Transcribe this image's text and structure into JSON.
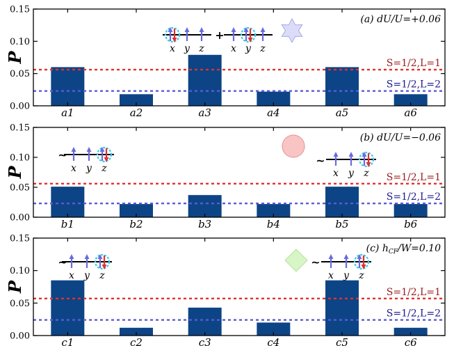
{
  "colors": {
    "bar": "#0d4486",
    "ref_s1": "#e0312f",
    "ref_s2": "#5a5ad6",
    "ref_s1_text": "#9b1c1c",
    "ref_s2_text": "#1b1b8c",
    "spin_up": "#6a6ae0",
    "spin_down": "#e0312f",
    "halo": "#39c9e6"
  },
  "chart_data": [
    {
      "type": "bar",
      "ylabel": "P",
      "ylim": [
        0,
        0.15
      ],
      "yticks": [
        "0.00",
        "0.05",
        "0.10",
        "0.15"
      ],
      "categories": [
        "a1",
        "a2",
        "a3",
        "a4",
        "a5",
        "a6"
      ],
      "values": [
        0.06,
        0.018,
        0.079,
        0.022,
        0.06,
        0.018
      ],
      "annotation": "(a) dU/U=+0.06",
      "reference_lines": [
        {
          "label": "S=1/2,L=1",
          "value": 0.056,
          "color": "#e0312f"
        },
        {
          "label": "S=1/2,L=2",
          "value": 0.023,
          "color": "#5a5ad6"
        }
      ],
      "marker": "star",
      "orbital_labels": [
        "x",
        "y",
        "z",
        "x",
        "y",
        "z"
      ],
      "operators": [
        "+"
      ]
    },
    {
      "type": "bar",
      "ylabel": "P",
      "ylim": [
        0,
        0.15
      ],
      "yticks": [
        "0.00",
        "0.05",
        "0.10",
        "0.15"
      ],
      "categories": [
        "b1",
        "b2",
        "b3",
        "b4",
        "b5",
        "b6"
      ],
      "values": [
        0.051,
        0.022,
        0.037,
        0.022,
        0.051,
        0.022
      ],
      "annotation": "(b) dU/U=−0.06",
      "reference_lines": [
        {
          "label": "S=1/2,L=1",
          "value": 0.056,
          "color": "#e0312f"
        },
        {
          "label": "S=1/2,L=2",
          "value": 0.023,
          "color": "#5a5ad6"
        }
      ],
      "marker": "circle",
      "orbital_labels": [
        "x",
        "y",
        "z",
        "x",
        "y",
        "z"
      ],
      "operators": [
        "~",
        "~"
      ]
    },
    {
      "type": "bar",
      "ylabel": "P",
      "ylim": [
        0,
        0.15
      ],
      "yticks": [
        "0.00",
        "0.05",
        "0.10",
        "0.15"
      ],
      "categories": [
        "c1",
        "c2",
        "c3",
        "c4",
        "c5",
        "c6"
      ],
      "values": [
        0.085,
        0.012,
        0.043,
        0.02,
        0.085,
        0.012
      ],
      "annotation": "(c) h",
      "annotation_sub": "CF",
      "annotation_tail": "/W=0.10",
      "reference_lines": [
        {
          "label": "S=1/2,L=1",
          "value": 0.057,
          "color": "#e0312f"
        },
        {
          "label": "S=1/2,L=2",
          "value": 0.024,
          "color": "#5a5ad6"
        }
      ],
      "marker": "diamond",
      "orbital_labels": [
        "x",
        "y",
        "z",
        "x",
        "y",
        "z"
      ],
      "operators": [
        "~",
        "~"
      ]
    }
  ]
}
